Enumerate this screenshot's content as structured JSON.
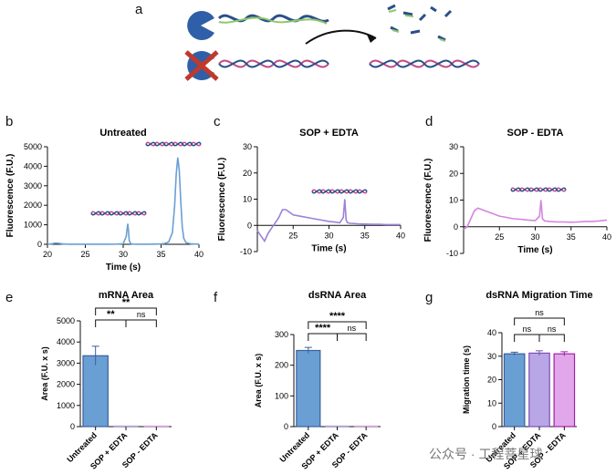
{
  "figure": {
    "panel_a": {
      "label": "a"
    },
    "panel_b": {
      "label": "b"
    },
    "panel_c": {
      "label": "c"
    },
    "panel_d": {
      "label": "d"
    },
    "panel_e": {
      "label": "e"
    },
    "panel_f": {
      "label": "f"
    },
    "panel_g": {
      "label": "g"
    }
  },
  "watermark": {
    "text": "公众号 · 工程菩星球"
  },
  "chart_data": [
    {
      "id": "b",
      "type": "line",
      "title": "Untreated",
      "xlabel": "Time (s)",
      "ylabel": "Fluorescence (F.U.)",
      "xlim": [
        20,
        40
      ],
      "ylim": [
        0,
        5000
      ],
      "xticks": [
        "20",
        "25",
        "30",
        "35",
        "40"
      ],
      "yticks": [
        "0",
        "1000",
        "2000",
        "3000",
        "4000",
        "5000"
      ],
      "x": [
        20,
        20.5,
        21,
        21.5,
        22,
        22.5,
        23,
        24,
        26,
        28,
        29,
        30,
        30.4,
        30.6,
        30.7,
        30.8,
        31,
        31.3,
        32,
        33,
        34,
        35,
        35.5,
        36,
        36.5,
        36.8,
        37,
        37.2,
        37.4,
        37.6,
        37.8,
        38,
        38.3,
        39,
        40
      ],
      "y": [
        0,
        20,
        60,
        50,
        20,
        10,
        5,
        5,
        5,
        5,
        10,
        30,
        400,
        1050,
        700,
        200,
        30,
        10,
        5,
        5,
        10,
        20,
        40,
        120,
        600,
        2000,
        3600,
        4450,
        3800,
        2200,
        900,
        300,
        80,
        20,
        10
      ],
      "color": "#6a9fd4"
    },
    {
      "id": "c",
      "type": "line",
      "title": "SOP + EDTA",
      "xlabel": "Time (s)",
      "ylabel": "Fluorescence (F.U.)",
      "xlim": [
        20,
        40
      ],
      "ylim": [
        -10,
        30
      ],
      "xticks": [
        "25",
        "30",
        "35",
        "40"
      ],
      "yticks": [
        "-10",
        "0",
        "10",
        "20",
        "30"
      ],
      "x": [
        20,
        20.5,
        21,
        21.5,
        22,
        22.5,
        23,
        23.5,
        24,
        24.5,
        25,
        26,
        27,
        28,
        29,
        30,
        31,
        31.5,
        32,
        32.2,
        32.4,
        32.6,
        33,
        34,
        35,
        36,
        37,
        38,
        39,
        40
      ],
      "y": [
        -2,
        -4,
        -6,
        -3,
        -1,
        1,
        3,
        6,
        6,
        5,
        4,
        3.5,
        3,
        2.5,
        2,
        1.5,
        1.2,
        1,
        3,
        10,
        2,
        1,
        0.8,
        0.6,
        0.5,
        0.4,
        0.4,
        0.3,
        0.3,
        0.3
      ],
      "color": "#9b82d6"
    },
    {
      "id": "d",
      "type": "line",
      "title": "SOP - EDTA",
      "xlabel": "Time (s)",
      "ylabel": "Fluorescence (F.U.)",
      "xlim": [
        20,
        40
      ],
      "ylim": [
        -10,
        30
      ],
      "xticks": [
        "25",
        "30",
        "35",
        "40"
      ],
      "yticks": [
        "-10",
        "0",
        "10",
        "20",
        "30"
      ],
      "x": [
        20,
        20.5,
        21,
        21.5,
        22,
        22.5,
        23,
        24,
        25,
        26,
        27,
        28,
        29,
        30,
        30.6,
        30.8,
        31,
        31.3,
        32,
        33,
        34,
        35,
        36,
        37,
        38,
        39,
        40
      ],
      "y": [
        -1,
        0,
        3,
        6,
        7,
        6.5,
        6,
        5,
        4,
        3.5,
        3,
        2.8,
        2.5,
        2.3,
        4,
        10,
        3,
        2.2,
        2,
        1.8,
        1.8,
        1.7,
        1.8,
        2,
        2,
        2.2,
        2.5
      ],
      "color": "#d486e0"
    },
    {
      "id": "e",
      "type": "bar",
      "title": "mRNA Area",
      "ylabel": "Area (F.U. x s)",
      "ylim": [
        0,
        5000
      ],
      "categories": [
        "Untreated",
        "SOP + EDTA",
        "SOP - EDTA"
      ],
      "values": [
        3350,
        0,
        0
      ],
      "errors": [
        450,
        0,
        0
      ],
      "yticks": [
        "0",
        "1000",
        "2000",
        "3000",
        "4000",
        "5000"
      ],
      "colors": [
        "#6a9fd4",
        "#b9a6e6",
        "#e2a6ea"
      ],
      "significance": [
        {
          "from": 0,
          "to": 1,
          "label": "**"
        },
        {
          "from": 0,
          "to": 2,
          "label": "**"
        },
        {
          "from": 1,
          "to": 2,
          "label": "ns"
        }
      ]
    },
    {
      "id": "f",
      "type": "bar",
      "title": "dsRNA Area",
      "ylabel": "Area (F.U. x s)",
      "ylim": [
        0,
        300
      ],
      "categories": [
        "Untreated",
        "SOP + EDTA",
        "SOP - EDTA"
      ],
      "values": [
        248,
        0,
        0
      ],
      "errors": [
        10,
        0,
        0
      ],
      "yticks": [
        "0",
        "100",
        "200",
        "300"
      ],
      "colors": [
        "#6a9fd4",
        "#b9a6e6",
        "#e2a6ea"
      ],
      "significance": [
        {
          "from": 0,
          "to": 1,
          "label": "****"
        },
        {
          "from": 0,
          "to": 2,
          "label": "****"
        },
        {
          "from": 1,
          "to": 2,
          "label": "ns"
        }
      ]
    },
    {
      "id": "g",
      "type": "bar",
      "title": "dsRNA Migration Time",
      "ylabel": "Migration time (s)",
      "ylim": [
        0,
        40
      ],
      "categories": [
        "Untreated",
        "SOP + EDTA",
        "SOP - EDTA"
      ],
      "values": [
        31,
        31.3,
        31
      ],
      "errors": [
        0.7,
        1.0,
        0.9
      ],
      "yticks": [
        "0",
        "10",
        "20",
        "30",
        "40"
      ],
      "colors": [
        "#6a9fd4",
        "#b9a6e6",
        "#e2a6ea"
      ],
      "strokes": [
        "#3a5fa0",
        "#7a4fb8",
        "#a020a8"
      ],
      "significance": [
        {
          "from": 0,
          "to": 1,
          "label": "ns"
        },
        {
          "from": 1,
          "to": 2,
          "label": "ns"
        },
        {
          "from": 0,
          "to": 2,
          "label": "ns"
        }
      ]
    }
  ]
}
